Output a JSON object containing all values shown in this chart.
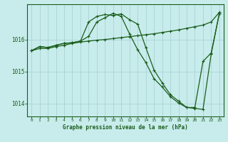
{
  "title": "Graphe pression niveau de la mer (hPa)",
  "bg_color": "#c8ecec",
  "grid_color": "#aad4d4",
  "line_color": "#1a5c1a",
  "xlim": [
    -0.5,
    23.5
  ],
  "ylim": [
    1013.6,
    1017.1
  ],
  "yticks": [
    1014,
    1015,
    1016
  ],
  "xticks": [
    0,
    1,
    2,
    3,
    4,
    5,
    6,
    7,
    8,
    9,
    10,
    11,
    12,
    13,
    14,
    15,
    16,
    17,
    18,
    19,
    20,
    21,
    22,
    23
  ],
  "series1_x": [
    0,
    1,
    2,
    3,
    4,
    5,
    6,
    7,
    8,
    9,
    10,
    11,
    12,
    13,
    14,
    15,
    16,
    17,
    18,
    19,
    20,
    21,
    22,
    23
  ],
  "series1_y": [
    1015.65,
    1015.72,
    1015.72,
    1015.78,
    1015.82,
    1015.88,
    1015.92,
    1015.95,
    1015.98,
    1016.0,
    1016.03,
    1016.06,
    1016.09,
    1016.12,
    1016.15,
    1016.18,
    1016.22,
    1016.26,
    1016.3,
    1016.35,
    1016.4,
    1016.45,
    1016.55,
    1016.85
  ],
  "series2_x": [
    0,
    1,
    2,
    3,
    4,
    5,
    6,
    7,
    8,
    9,
    10,
    11,
    12,
    13,
    14,
    15,
    16,
    17,
    18,
    19,
    20,
    21,
    22,
    23
  ],
  "series2_y": [
    1015.65,
    1015.78,
    1015.75,
    1015.82,
    1015.88,
    1015.9,
    1015.95,
    1016.55,
    1016.72,
    1016.78,
    1016.75,
    1016.8,
    1016.62,
    1016.48,
    1015.75,
    1015.05,
    1014.65,
    1014.28,
    1014.08,
    1013.88,
    1013.85,
    1013.82,
    1015.55,
    1016.82
  ],
  "series3_x": [
    0,
    1,
    2,
    3,
    4,
    5,
    6,
    7,
    8,
    9,
    10,
    11,
    12,
    13,
    14,
    15,
    16,
    17,
    18,
    19,
    20,
    21,
    22,
    23
  ],
  "series3_y": [
    1015.65,
    1015.78,
    1015.75,
    1015.82,
    1015.88,
    1015.9,
    1015.95,
    1016.1,
    1016.55,
    1016.68,
    1016.82,
    1016.72,
    1016.18,
    1015.68,
    1015.28,
    1014.78,
    1014.52,
    1014.22,
    1014.02,
    1013.88,
    1013.88,
    1015.32,
    1015.58,
    1016.82
  ]
}
